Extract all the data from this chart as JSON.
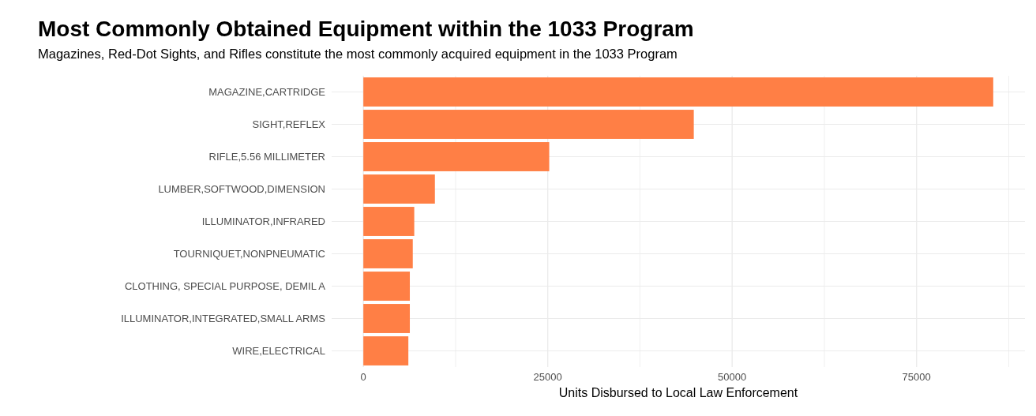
{
  "chart_data": {
    "type": "bar",
    "orientation": "horizontal",
    "title": "Most Commonly Obtained Equipment within the 1033 Program",
    "subtitle": "Magazines, Red-Dot Sights, and Rifles constitute the most commonly acquired equipment in the 1033 Program",
    "xlabel": "Units Disbursed to Local Law Enforcement",
    "categories": [
      "MAGAZINE,CARTRIDGE",
      "SIGHT,REFLEX",
      "RIFLE,5.56 MILLIMETER",
      "LUMBER,SOFTWOOD,DIMENSION",
      "ILLUMINATOR,INFRARED",
      "TOURNIQUET,NONPNEUMATIC",
      "CLOTHING, SPECIAL PURPOSE, DEMIL A",
      "ILLUMINATOR,INTEGRATED,SMALL ARMS",
      "WIRE,ELECTRICAL"
    ],
    "values": [
      85400,
      44800,
      25200,
      9700,
      6900,
      6700,
      6300,
      6300,
      6100
    ],
    "color": "#ff7f45",
    "xlim": [
      -4300,
      89700
    ],
    "xticks": [
      0,
      {
        "value": 12500,
        "label": null
      },
      25000,
      {
        "value": 37500,
        "label": null
      },
      50000,
      {
        "value": 62500,
        "label": null
      },
      75000,
      {
        "value": 87500,
        "label": null
      }
    ],
    "grid": true
  }
}
